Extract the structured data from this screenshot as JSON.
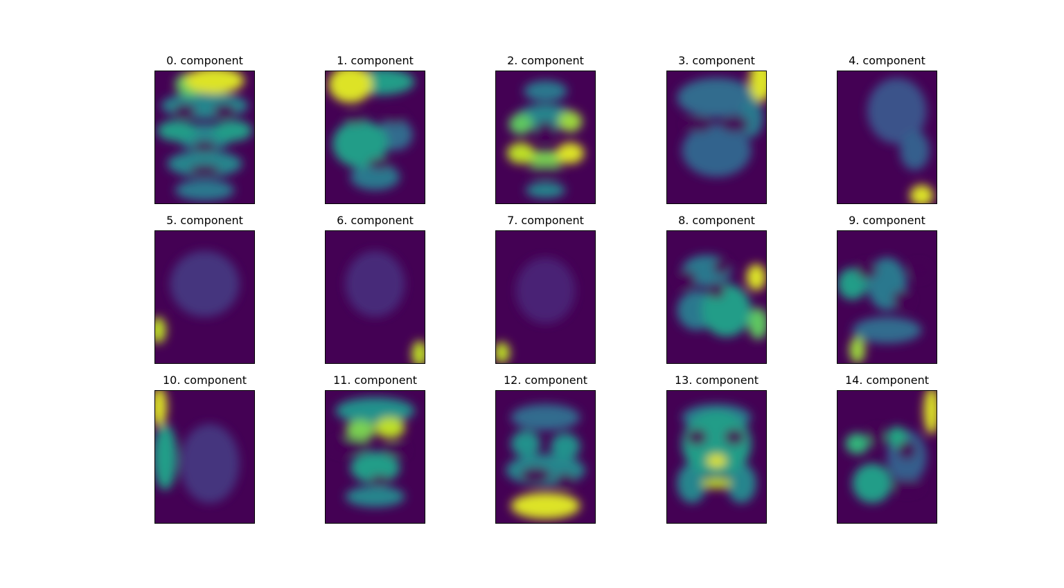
{
  "chart_data": {
    "type": "heatmap",
    "colormap": "viridis",
    "grid": false,
    "axes_visible": false,
    "layout_rows": 3,
    "layout_cols": 5,
    "panels": [
      {
        "title": "0. component",
        "blobs": [
          [
            0.6,
            0.07,
            0.3,
            0.1,
            0.95
          ],
          [
            0.35,
            0.1,
            0.15,
            0.09,
            0.75
          ],
          [
            0.5,
            0.26,
            0.44,
            0.1,
            0.45
          ],
          [
            0.22,
            0.45,
            0.2,
            0.08,
            0.55
          ],
          [
            0.78,
            0.45,
            0.2,
            0.08,
            0.55
          ],
          [
            0.5,
            0.5,
            0.28,
            0.1,
            0.45
          ],
          [
            0.5,
            0.7,
            0.38,
            0.1,
            0.45
          ],
          [
            0.5,
            0.9,
            0.3,
            0.08,
            0.4
          ]
        ],
        "holes": [
          [
            0.3,
            0.3,
            0.11,
            0.05
          ],
          [
            0.7,
            0.3,
            0.11,
            0.05
          ],
          [
            0.5,
            0.57,
            0.11,
            0.04
          ],
          [
            0.5,
            0.75,
            0.15,
            0.04
          ]
        ]
      },
      {
        "title": "1. component",
        "blobs": [
          [
            0.25,
            0.1,
            0.22,
            0.14,
            0.95
          ],
          [
            0.55,
            0.08,
            0.35,
            0.1,
            0.55
          ],
          [
            0.35,
            0.55,
            0.28,
            0.18,
            0.55
          ],
          [
            0.7,
            0.48,
            0.18,
            0.12,
            0.35
          ],
          [
            0.5,
            0.8,
            0.25,
            0.1,
            0.4
          ]
        ],
        "holes": [
          [
            0.3,
            0.36,
            0.1,
            0.04
          ],
          [
            0.7,
            0.36,
            0.1,
            0.04
          ],
          [
            0.55,
            0.7,
            0.12,
            0.04
          ]
        ]
      },
      {
        "title": "2. component",
        "blobs": [
          [
            0.5,
            0.15,
            0.22,
            0.08,
            0.4
          ],
          [
            0.25,
            0.4,
            0.12,
            0.08,
            0.75
          ],
          [
            0.75,
            0.38,
            0.12,
            0.08,
            0.85
          ],
          [
            0.5,
            0.35,
            0.3,
            0.1,
            0.45
          ],
          [
            0.25,
            0.62,
            0.14,
            0.08,
            0.9
          ],
          [
            0.75,
            0.62,
            0.14,
            0.08,
            0.95
          ],
          [
            0.5,
            0.66,
            0.25,
            0.06,
            0.8
          ],
          [
            0.5,
            0.9,
            0.2,
            0.06,
            0.45
          ]
        ],
        "holes": [
          [
            0.5,
            0.45,
            0.09,
            0.07
          ],
          [
            0.5,
            0.76,
            0.16,
            0.05
          ]
        ]
      },
      {
        "title": "3. component",
        "blobs": [
          [
            0.95,
            0.07,
            0.12,
            0.16,
            0.95
          ],
          [
            0.5,
            0.2,
            0.4,
            0.15,
            0.35
          ],
          [
            0.5,
            0.6,
            0.35,
            0.2,
            0.32
          ],
          [
            0.85,
            0.35,
            0.12,
            0.15,
            0.4
          ]
        ],
        "holes": [
          [
            0.32,
            0.4,
            0.14,
            0.06
          ],
          [
            0.68,
            0.4,
            0.14,
            0.06
          ]
        ]
      },
      {
        "title": "4. component",
        "blobs": [
          [
            0.85,
            0.94,
            0.12,
            0.08,
            0.95
          ],
          [
            0.6,
            0.3,
            0.3,
            0.25,
            0.25
          ],
          [
            0.78,
            0.6,
            0.15,
            0.15,
            0.3
          ]
        ],
        "holes": []
      },
      {
        "title": "5. component",
        "blobs": [
          [
            0.03,
            0.75,
            0.08,
            0.1,
            0.9
          ],
          [
            0.5,
            0.4,
            0.35,
            0.25,
            0.15
          ]
        ],
        "holes": []
      },
      {
        "title": "6. component",
        "blobs": [
          [
            0.95,
            0.93,
            0.08,
            0.1,
            0.9
          ],
          [
            0.5,
            0.4,
            0.3,
            0.25,
            0.12
          ]
        ],
        "holes": []
      },
      {
        "title": "7. component",
        "blobs": [
          [
            0.06,
            0.92,
            0.08,
            0.08,
            0.9
          ],
          [
            0.5,
            0.45,
            0.3,
            0.25,
            0.1
          ]
        ],
        "holes": []
      },
      {
        "title": "8. component",
        "blobs": [
          [
            0.9,
            0.35,
            0.1,
            0.1,
            0.95
          ],
          [
            0.92,
            0.7,
            0.1,
            0.12,
            0.75
          ],
          [
            0.6,
            0.6,
            0.25,
            0.2,
            0.55
          ],
          [
            0.3,
            0.6,
            0.2,
            0.15,
            0.4
          ],
          [
            0.4,
            0.3,
            0.25,
            0.12,
            0.4
          ]
        ],
        "holes": [
          [
            0.2,
            0.37,
            0.09,
            0.07
          ],
          [
            0.55,
            0.27,
            0.08,
            0.06
          ],
          [
            0.5,
            0.45,
            0.08,
            0.06
          ]
        ]
      },
      {
        "title": "9. component",
        "blobs": [
          [
            0.2,
            0.9,
            0.08,
            0.1,
            0.85
          ],
          [
            0.15,
            0.4,
            0.15,
            0.12,
            0.55
          ],
          [
            0.5,
            0.4,
            0.2,
            0.2,
            0.4
          ],
          [
            0.5,
            0.75,
            0.35,
            0.1,
            0.35
          ]
        ],
        "holes": [
          [
            0.3,
            0.3,
            0.1,
            0.06
          ],
          [
            0.82,
            0.3,
            0.1,
            0.06
          ],
          [
            0.65,
            0.52,
            0.09,
            0.07
          ]
        ]
      },
      {
        "title": "10. component",
        "blobs": [
          [
            0.04,
            0.12,
            0.08,
            0.15,
            0.95
          ],
          [
            0.1,
            0.5,
            0.12,
            0.25,
            0.55
          ],
          [
            0.55,
            0.55,
            0.3,
            0.3,
            0.15
          ]
        ],
        "holes": []
      },
      {
        "title": "11. component",
        "blobs": [
          [
            0.35,
            0.3,
            0.15,
            0.08,
            0.8
          ],
          [
            0.65,
            0.28,
            0.15,
            0.08,
            0.9
          ],
          [
            0.5,
            0.15,
            0.4,
            0.1,
            0.5
          ],
          [
            0.5,
            0.58,
            0.25,
            0.12,
            0.55
          ],
          [
            0.5,
            0.8,
            0.3,
            0.08,
            0.45
          ]
        ],
        "holes": [
          [
            0.25,
            0.42,
            0.2,
            0.06
          ],
          [
            0.7,
            0.45,
            0.12,
            0.05
          ],
          [
            0.55,
            0.68,
            0.1,
            0.04
          ]
        ]
      },
      {
        "title": "12. component",
        "blobs": [
          [
            0.5,
            0.87,
            0.35,
            0.1,
            0.95
          ],
          [
            0.5,
            0.6,
            0.4,
            0.12,
            0.45
          ],
          [
            0.3,
            0.4,
            0.15,
            0.1,
            0.5
          ],
          [
            0.7,
            0.42,
            0.15,
            0.1,
            0.5
          ],
          [
            0.5,
            0.2,
            0.35,
            0.1,
            0.35
          ]
        ],
        "holes": [
          [
            0.4,
            0.64,
            0.15,
            0.06
          ],
          [
            0.7,
            0.68,
            0.1,
            0.05
          ]
        ]
      },
      {
        "title": "13. component",
        "blobs": [
          [
            0.5,
            0.53,
            0.1,
            0.05,
            0.95
          ],
          [
            0.5,
            0.7,
            0.15,
            0.04,
            0.9
          ],
          [
            0.5,
            0.4,
            0.35,
            0.25,
            0.55
          ],
          [
            0.5,
            0.2,
            0.35,
            0.1,
            0.4
          ],
          [
            0.25,
            0.7,
            0.15,
            0.15,
            0.45
          ],
          [
            0.75,
            0.7,
            0.15,
            0.15,
            0.45
          ]
        ],
        "holes": [
          [
            0.3,
            0.35,
            0.1,
            0.06
          ],
          [
            0.68,
            0.35,
            0.1,
            0.06
          ]
        ]
      },
      {
        "title": "14. component",
        "blobs": [
          [
            0.95,
            0.15,
            0.08,
            0.18,
            0.95
          ],
          [
            0.2,
            0.4,
            0.12,
            0.08,
            0.65
          ],
          [
            0.6,
            0.35,
            0.1,
            0.08,
            0.6
          ],
          [
            0.35,
            0.7,
            0.2,
            0.15,
            0.55
          ],
          [
            0.7,
            0.5,
            0.2,
            0.2,
            0.3
          ]
        ],
        "holes": [
          [
            0.4,
            0.35,
            0.09,
            0.07
          ],
          [
            0.7,
            0.45,
            0.09,
            0.07
          ],
          [
            0.7,
            0.72,
            0.15,
            0.05
          ]
        ]
      }
    ]
  }
}
